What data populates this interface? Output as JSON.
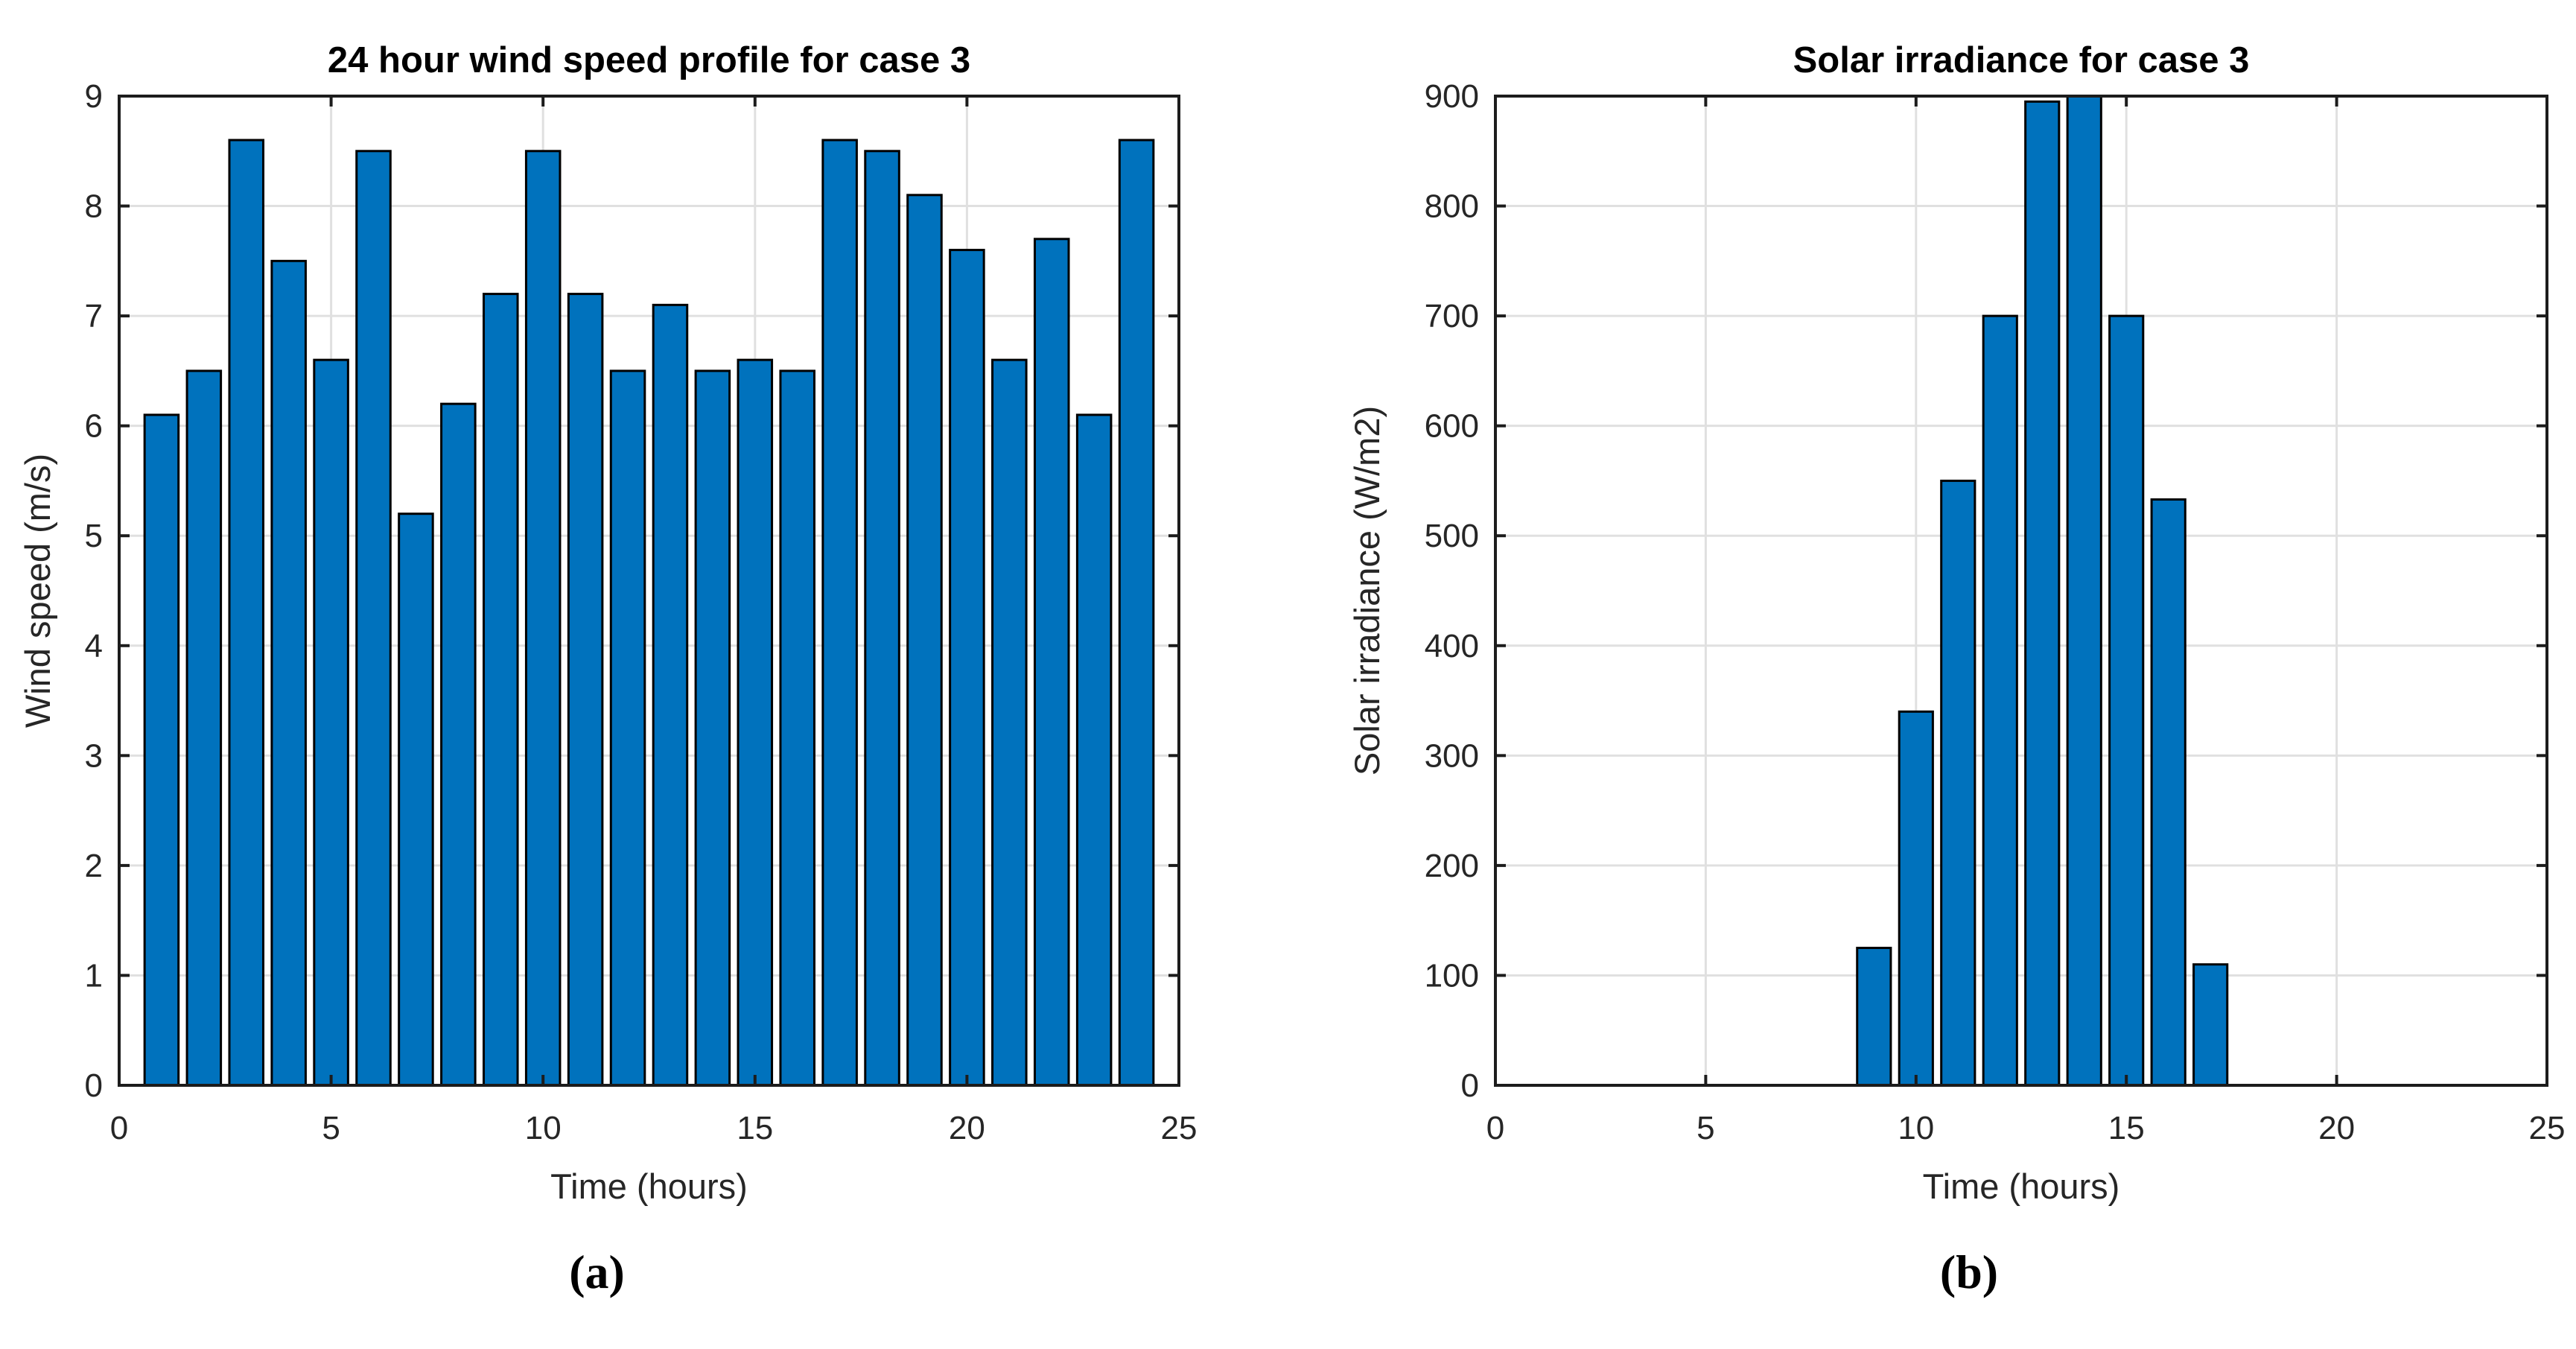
{
  "page": {
    "background": "#ffffff"
  },
  "colors": {
    "bar_fill": "#0072BD",
    "bar_edge": "#000000",
    "grid": "#e0e0e0",
    "axis": "#1c1c1c",
    "tick_text": "#262626",
    "title_text": "#000000",
    "caption_text": "#000000"
  },
  "chart_data": [
    {
      "type": "bar",
      "title": "24 hour wind speed profile for case 3",
      "xlabel": "Time (hours)",
      "ylabel": "Wind speed (m/s)",
      "caption": "(a)",
      "x": [
        1,
        2,
        3,
        4,
        5,
        6,
        7,
        8,
        9,
        10,
        11,
        12,
        13,
        14,
        15,
        16,
        17,
        18,
        19,
        20,
        21,
        22,
        23,
        24
      ],
      "values": [
        6.1,
        6.5,
        8.6,
        7.5,
        6.6,
        8.5,
        5.2,
        6.2,
        7.2,
        8.5,
        7.2,
        6.5,
        7.1,
        6.5,
        6.6,
        6.5,
        8.6,
        8.5,
        8.1,
        7.6,
        6.6,
        7.7,
        6.1,
        8.6
      ],
      "xlim": [
        0,
        25
      ],
      "ylim": [
        0,
        9
      ],
      "xticks": [
        0,
        5,
        10,
        15,
        20,
        25
      ],
      "yticks": [
        0,
        1,
        2,
        3,
        4,
        5,
        6,
        7,
        8,
        9
      ],
      "bar_width": 0.8,
      "grid": true,
      "legend": "none"
    },
    {
      "type": "bar",
      "title": "Solar irradiance for case 3",
      "xlabel": "Time (hours)",
      "ylabel": "Solar irradiance (W/m2)",
      "caption": "(b)",
      "x": [
        9,
        10,
        11,
        12,
        13,
        14,
        15,
        16,
        17
      ],
      "values": [
        125,
        340,
        550,
        700,
        895,
        900,
        700,
        533,
        110
      ],
      "xlim": [
        0,
        25
      ],
      "ylim": [
        0,
        900
      ],
      "xticks": [
        0,
        5,
        10,
        15,
        20,
        25
      ],
      "yticks": [
        0,
        100,
        200,
        300,
        400,
        500,
        600,
        700,
        800,
        900
      ],
      "bar_width": 0.8,
      "grid": true,
      "legend": "none"
    }
  ]
}
